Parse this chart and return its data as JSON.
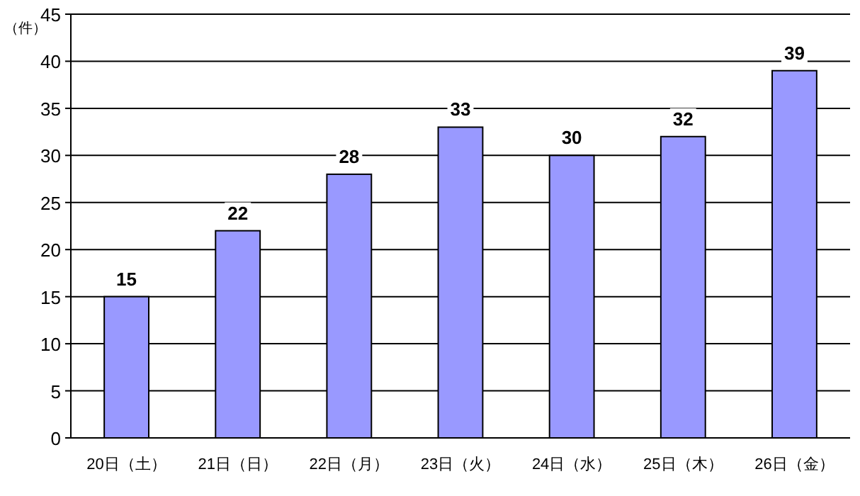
{
  "chart_data": {
    "type": "bar",
    "ylabel": "（件）",
    "categories": [
      "20日（土）",
      "21日（日）",
      "22日（月）",
      "23日（火）",
      "24日（水）",
      "25日（木）",
      "26日（金）"
    ],
    "values": [
      15,
      22,
      28,
      33,
      30,
      32,
      39
    ],
    "color": "#9999ff",
    "ylim": [
      0,
      45
    ],
    "yticks": [
      0,
      5,
      10,
      15,
      20,
      25,
      30,
      35,
      40,
      45
    ],
    "grid": "y",
    "data_labels": true
  }
}
